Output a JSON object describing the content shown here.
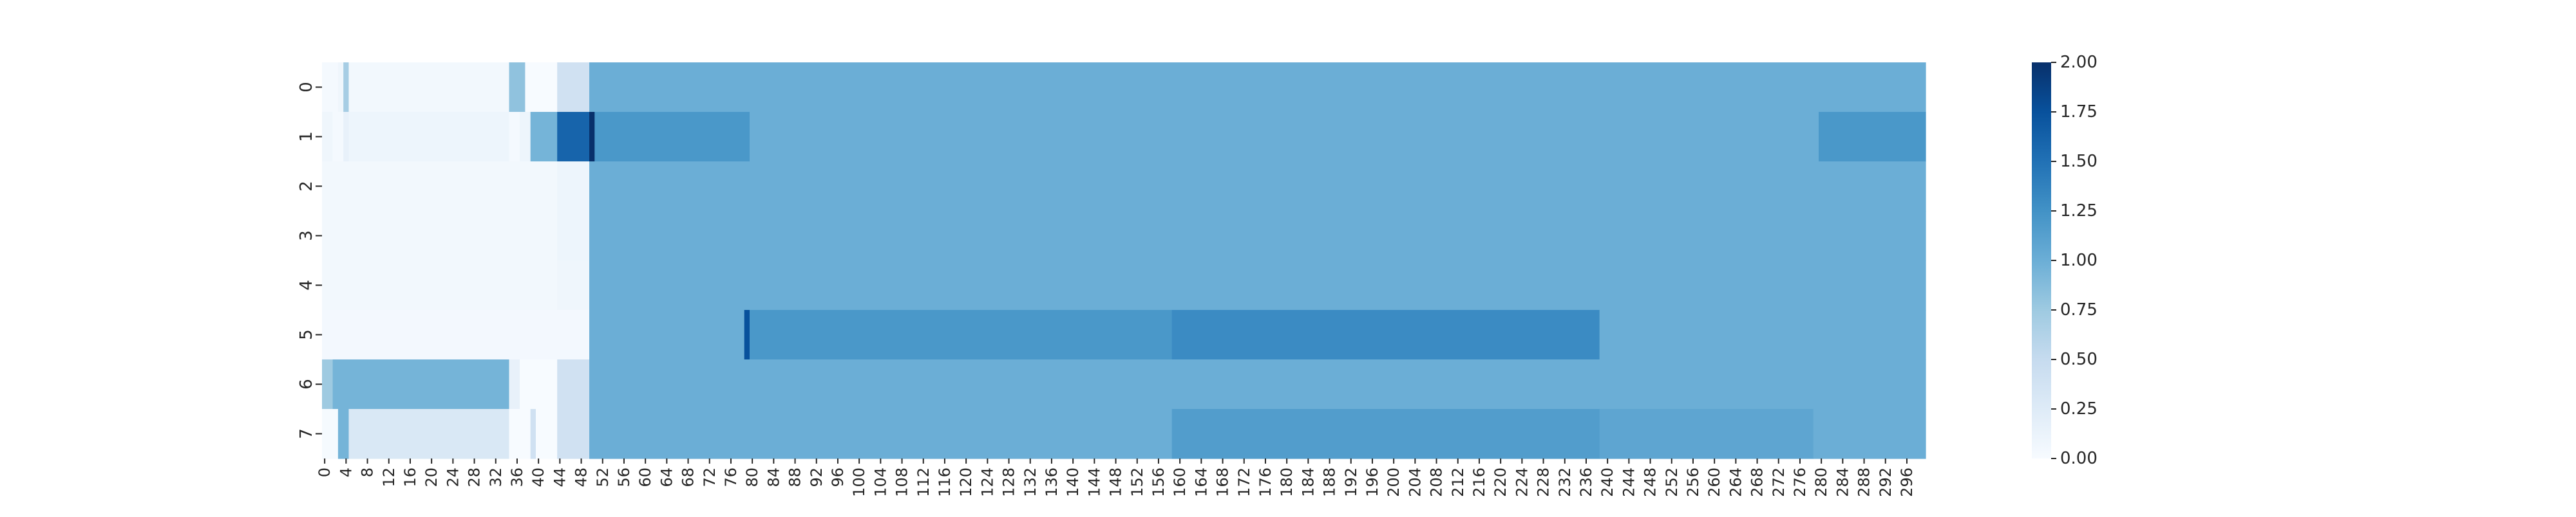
{
  "chart_data": {
    "type": "heatmap",
    "title": "",
    "xlabel": "",
    "ylabel": "",
    "rows": [
      "0",
      "1",
      "2",
      "3",
      "4",
      "5",
      "6",
      "7"
    ],
    "columns_count": 300,
    "x_tick_labels": [
      "0",
      "4",
      "8",
      "12",
      "16",
      "20",
      "24",
      "28",
      "32",
      "36",
      "40",
      "44",
      "48",
      "52",
      "56",
      "60",
      "64",
      "68",
      "72",
      "76",
      "80",
      "84",
      "88",
      "92",
      "96",
      "100",
      "104",
      "108",
      "112",
      "116",
      "120",
      "124",
      "128",
      "132",
      "136",
      "140",
      "144",
      "148",
      "152",
      "156",
      "160",
      "164",
      "168",
      "172",
      "176",
      "180",
      "184",
      "188",
      "192",
      "196",
      "200",
      "204",
      "208",
      "212",
      "216",
      "220",
      "224",
      "228",
      "232",
      "236",
      "240",
      "244",
      "248",
      "252",
      "256",
      "260",
      "264",
      "268",
      "272",
      "276",
      "280",
      "284",
      "288",
      "292",
      "296"
    ],
    "value_range": [
      0.0,
      2.0
    ],
    "colormap": "Blues",
    "colorbar": {
      "ticks": [
        0.0,
        0.25,
        0.5,
        0.75,
        1.0,
        1.25,
        1.5,
        1.75,
        2.0
      ],
      "tick_labels": [
        "0.00",
        "0.25",
        "0.50",
        "0.75",
        "1.00",
        "1.25",
        "1.50",
        "1.75",
        "2.00"
      ],
      "placement": "right"
    },
    "cell_runs_note_free": true,
    "row_segments": [
      [
        [
          0,
          3,
          0.03
        ],
        [
          3,
          4,
          0.08
        ],
        [
          4,
          5,
          0.7
        ],
        [
          5,
          35,
          0.05
        ],
        [
          35,
          38,
          0.82
        ],
        [
          38,
          44,
          0.0
        ],
        [
          44,
          50,
          0.4
        ],
        [
          50,
          300,
          1.0
        ]
      ],
      [
        [
          0,
          2,
          0.08
        ],
        [
          2,
          4,
          0.03
        ],
        [
          4,
          5,
          0.15
        ],
        [
          5,
          35,
          0.1
        ],
        [
          35,
          37,
          0.03
        ],
        [
          37,
          39,
          0.1
        ],
        [
          39,
          44,
          0.95
        ],
        [
          44,
          50,
          1.6
        ],
        [
          50,
          51,
          2.0
        ],
        [
          51,
          80,
          1.2
        ],
        [
          80,
          280,
          1.0
        ],
        [
          280,
          300,
          1.2
        ]
      ],
      [
        [
          0,
          44,
          0.05
        ],
        [
          44,
          50,
          0.1
        ],
        [
          50,
          300,
          1.0
        ]
      ],
      [
        [
          0,
          44,
          0.05
        ],
        [
          44,
          50,
          0.1
        ],
        [
          50,
          300,
          1.0
        ]
      ],
      [
        [
          0,
          44,
          0.05
        ],
        [
          44,
          50,
          0.08
        ],
        [
          50,
          300,
          1.0
        ]
      ],
      [
        [
          0,
          50,
          0.04
        ],
        [
          50,
          79,
          1.0
        ],
        [
          79,
          80,
          1.75
        ],
        [
          80,
          159,
          1.2
        ],
        [
          159,
          239,
          1.3
        ],
        [
          239,
          300,
          1.0
        ]
      ],
      [
        [
          0,
          2,
          0.75
        ],
        [
          2,
          35,
          0.95
        ],
        [
          35,
          37,
          0.15
        ],
        [
          37,
          44,
          0.0
        ],
        [
          44,
          50,
          0.4
        ],
        [
          50,
          300,
          1.0
        ]
      ],
      [
        [
          0,
          3,
          0.02
        ],
        [
          3,
          5,
          0.95
        ],
        [
          5,
          35,
          0.3
        ],
        [
          35,
          39,
          0.0
        ],
        [
          39,
          40,
          0.4
        ],
        [
          40,
          44,
          0.0
        ],
        [
          44,
          50,
          0.4
        ],
        [
          50,
          159,
          1.0
        ],
        [
          159,
          239,
          1.15
        ],
        [
          239,
          279,
          1.08
        ],
        [
          279,
          300,
          1.0
        ]
      ]
    ]
  }
}
